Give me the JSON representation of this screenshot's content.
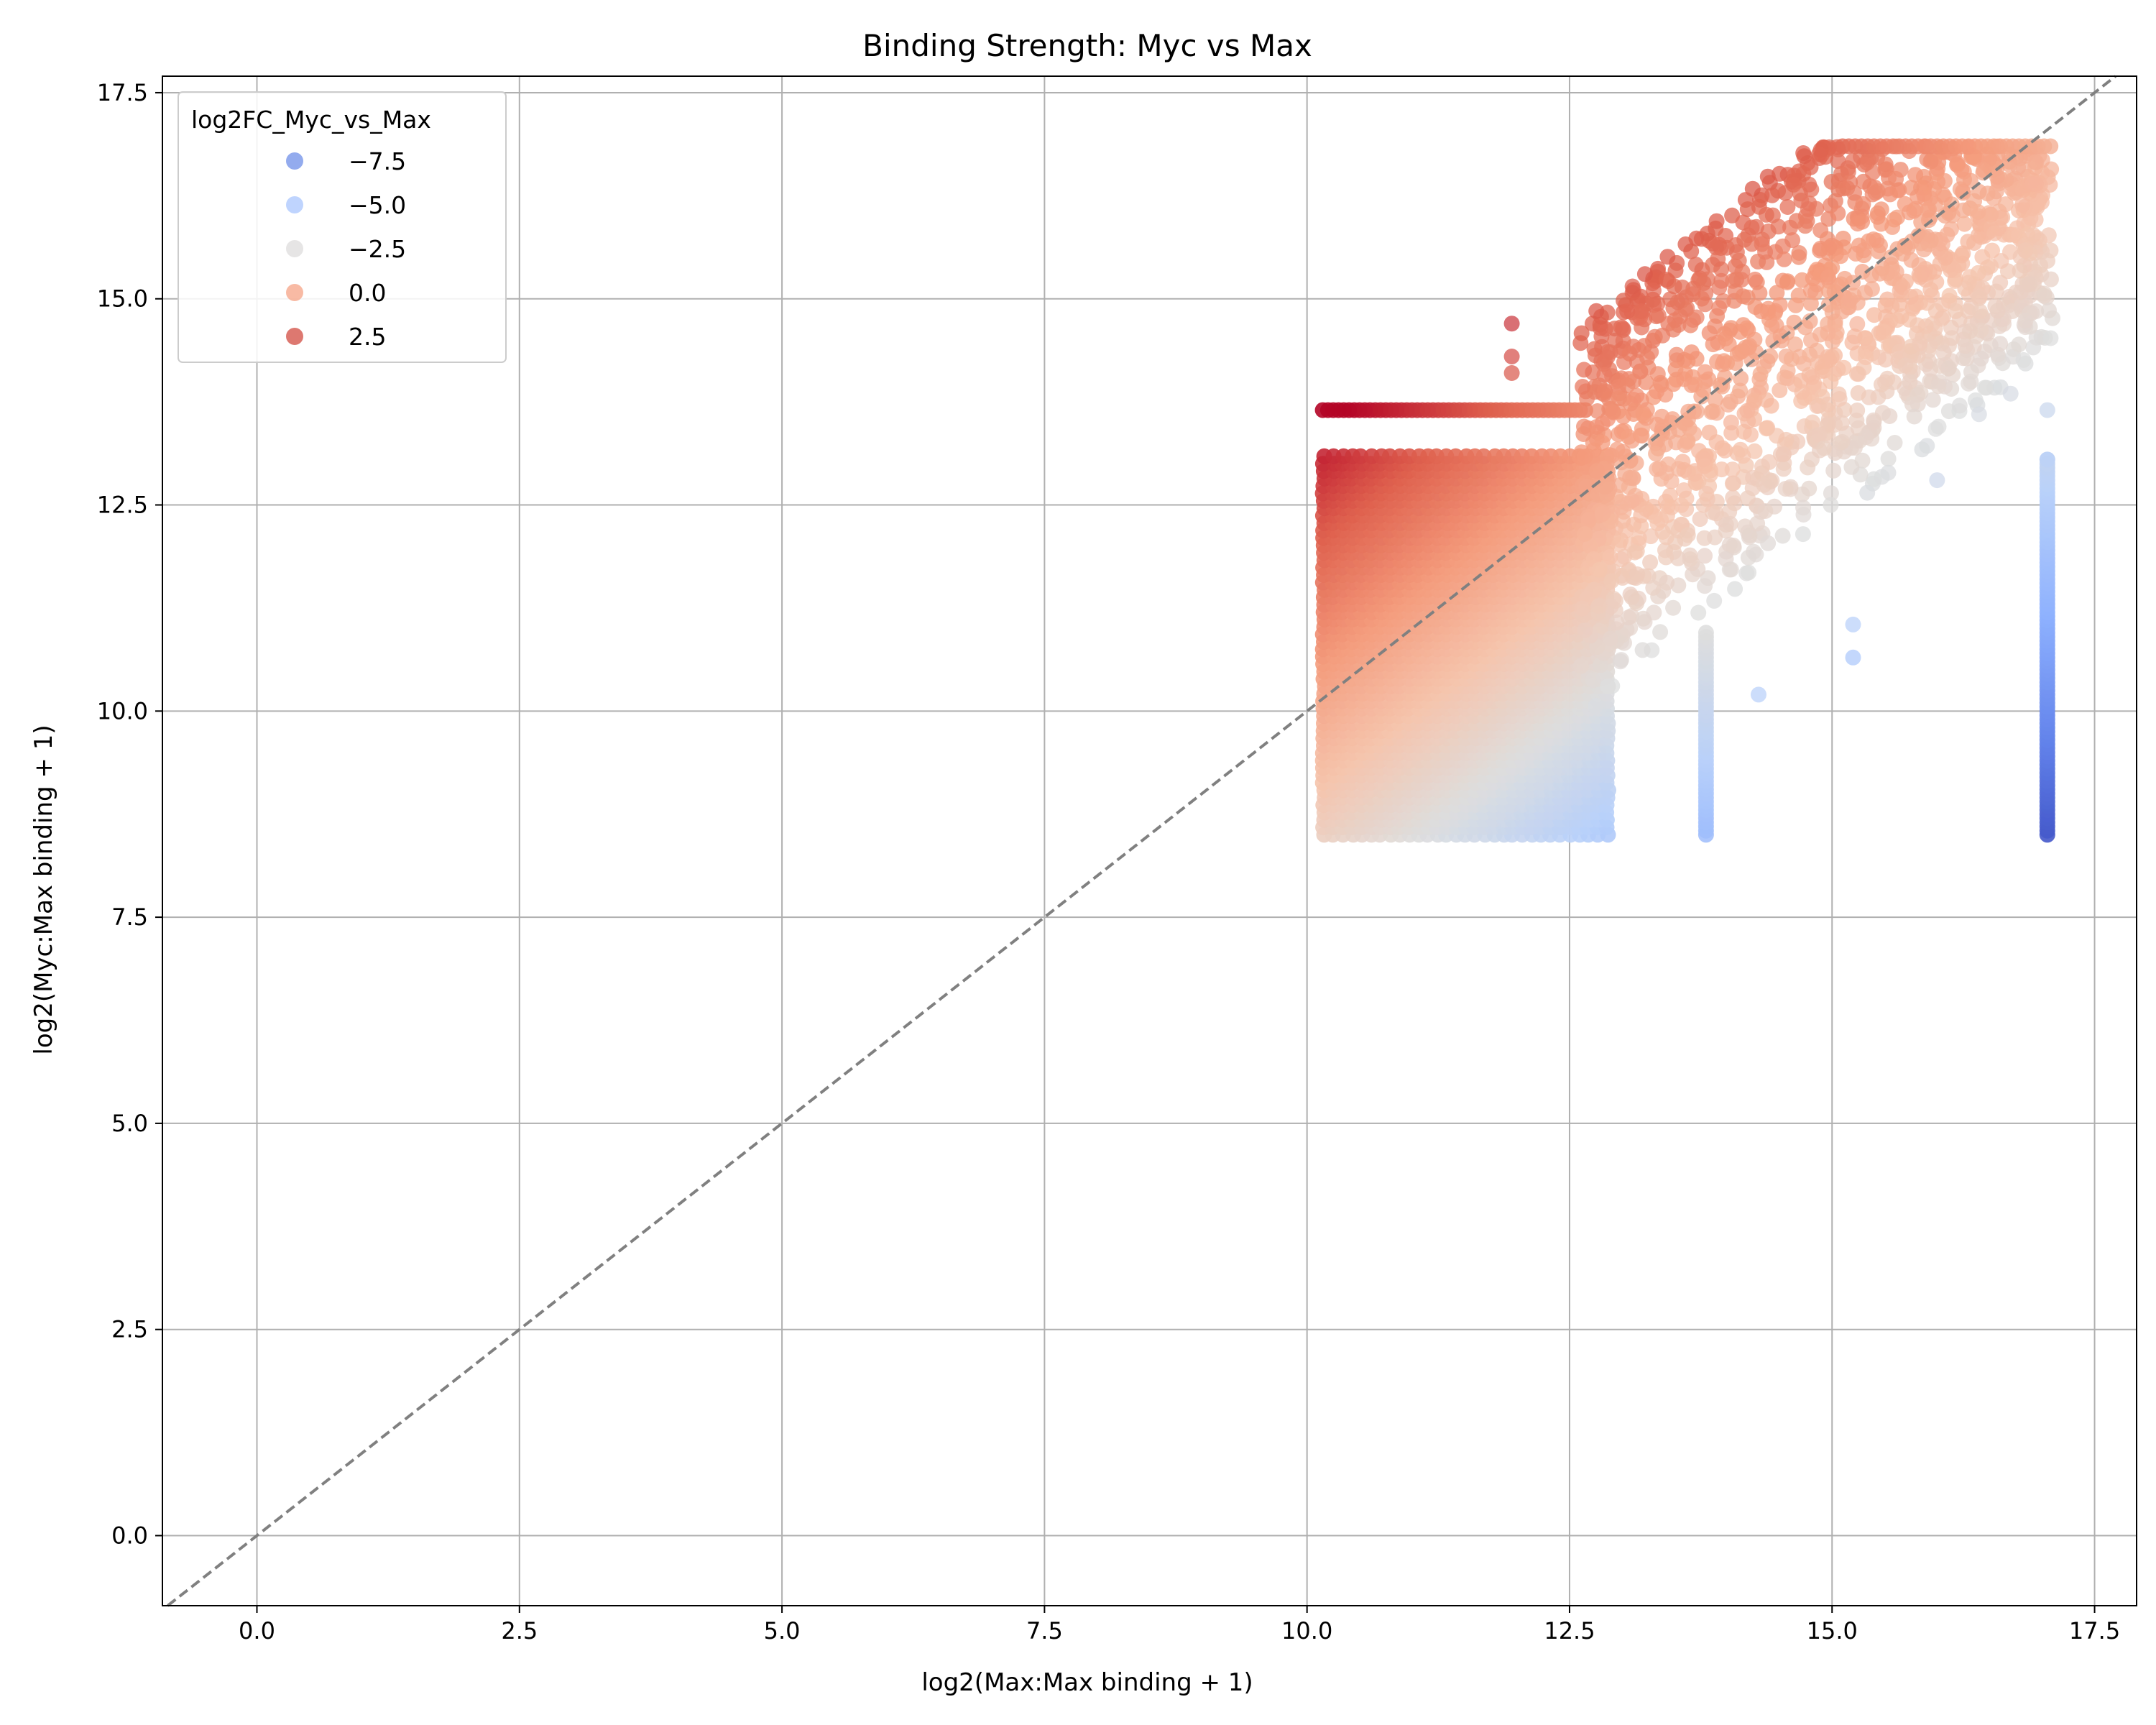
{
  "chart_data": {
    "type": "scatter",
    "title": "Binding Strength: Myc vs Max",
    "xlabel": "log2(Max:Max binding + 1)",
    "ylabel": "log2(Myc:Max binding + 1)",
    "xlim": [
      -0.9,
      17.9
    ],
    "ylim": [
      -0.85,
      17.7
    ],
    "xticks": [
      0.0,
      2.5,
      5.0,
      7.5,
      10.0,
      12.5,
      15.0,
      17.5
    ],
    "yticks": [
      0.0,
      2.5,
      5.0,
      7.5,
      10.0,
      12.5,
      15.0,
      17.5
    ],
    "xtick_labels": [
      "0.0",
      "2.5",
      "5.0",
      "7.5",
      "10.0",
      "12.5",
      "15.0",
      "17.5"
    ],
    "ytick_labels": [
      "0.0",
      "2.5",
      "5.0",
      "7.5",
      "10.0",
      "12.5",
      "15.0",
      "17.5"
    ],
    "grid": true,
    "colormap": "coolwarm",
    "color_variable": "log2FC_Myc_vs_Max",
    "color_range": [
      -8.6,
      3.5
    ],
    "reference_line": {
      "type": "y=x",
      "style": "dashed",
      "color": "#808080"
    },
    "legend": {
      "title": "log2FC_Myc_vs_Max",
      "placement": "upper-left",
      "entries": [
        {
          "label": "−7.5",
          "value": -7.5,
          "color": "#6f8fe8"
        },
        {
          "label": "−5.0",
          "value": -5.0,
          "color": "#a9c6fd"
        },
        {
          "label": "−2.5",
          "value": -2.5,
          "color": "#dddcdc"
        },
        {
          "label": "0.0",
          "value": 0.0,
          "color": "#f6a385"
        },
        {
          "label": "2.5",
          "value": 2.5,
          "color": "#d24b40"
        }
      ]
    },
    "series": [
      {
        "region": "main-block",
        "x_range": [
          10.15,
          12.85
        ],
        "y_range": [
          8.5,
          13.1
        ]
      },
      {
        "region": "top-band",
        "x_range": [
          10.15,
          12.7
        ],
        "y": 13.65
      },
      {
        "region": "diagonal-cloud",
        "x_range": [
          12.6,
          17.1
        ],
        "y_range": [
          9.9,
          16.85
        ]
      },
      {
        "region": "column-13.8",
        "x": 13.8,
        "y_range": [
          8.5,
          11.0
        ]
      },
      {
        "region": "column-17.05",
        "x": 17.05,
        "y_range": [
          8.5,
          13.1
        ]
      },
      {
        "region": "outliers",
        "points": [
          [
            11.95,
            14.7
          ],
          [
            11.95,
            14.3
          ],
          [
            11.95,
            14.1
          ],
          [
            13.3,
            15.1
          ],
          [
            13.1,
            15.15
          ],
          [
            15.2,
            11.05
          ],
          [
            15.2,
            10.65
          ],
          [
            14.3,
            10.2
          ],
          [
            17.05,
            13.65
          ],
          [
            17.05,
            13.05
          ],
          [
            16.0,
            12.8
          ],
          [
            16.7,
            13.85
          ],
          [
            16.4,
            13.6
          ]
        ]
      }
    ]
  }
}
